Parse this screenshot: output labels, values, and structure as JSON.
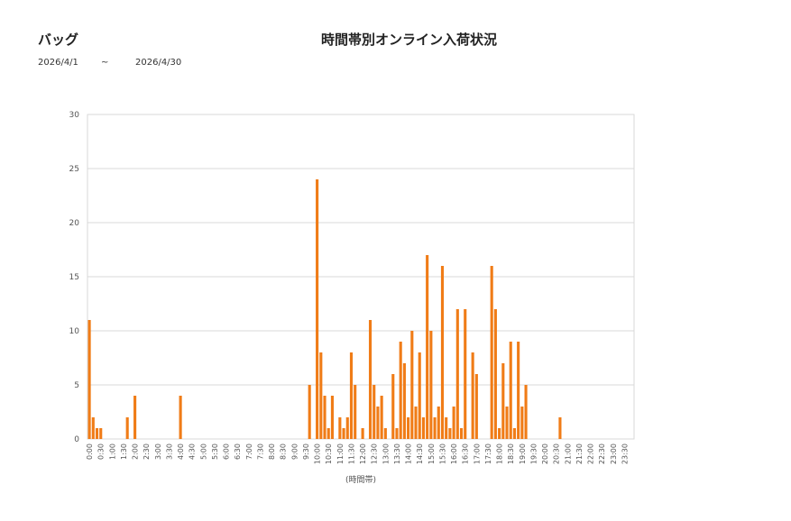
{
  "header": {
    "category": "バッグ",
    "title": "時間帯別オンライン入荷状況",
    "date_from": "2026/4/1",
    "date_sep": "~",
    "date_to": "2026/4/30"
  },
  "chart_data": {
    "type": "bar",
    "title": "時間帯別オンライン入荷状況",
    "xlabel": "(時間帯)",
    "ylabel": "",
    "ylim": [
      0,
      30
    ],
    "yticks": [
      0,
      5,
      10,
      15,
      20,
      25,
      30
    ],
    "grid": true,
    "bar_color": "#F07C17",
    "x_tick_labels": [
      "0:00",
      "0:30",
      "1:00",
      "1:30",
      "2:00",
      "2:30",
      "3:00",
      "3:30",
      "4:00",
      "4:30",
      "5:00",
      "5:30",
      "6:00",
      "6:30",
      "7:00",
      "7:30",
      "8:00",
      "8:30",
      "9:00",
      "9:30",
      "10:00",
      "10:30",
      "11:00",
      "11:30",
      "12:00",
      "12:30",
      "13:00",
      "13:30",
      "14:00",
      "14:30",
      "15:00",
      "15:30",
      "16:00",
      "16:30",
      "17:00",
      "17:30",
      "18:00",
      "18:30",
      "19:00",
      "19:30",
      "20:00",
      "20:30",
      "21:00",
      "21:30",
      "22:00",
      "22:30",
      "23:00",
      "23:30"
    ],
    "slots_per_label": 3,
    "values": [
      11,
      2,
      1,
      1,
      0,
      0,
      0,
      0,
      0,
      0,
      2,
      0,
      4,
      0,
      0,
      0,
      0,
      0,
      0,
      0,
      0,
      0,
      0,
      0,
      4,
      0,
      0,
      0,
      0,
      0,
      0,
      0,
      0,
      0,
      0,
      0,
      0,
      0,
      0,
      0,
      0,
      0,
      0,
      0,
      0,
      0,
      0,
      0,
      0,
      0,
      0,
      0,
      0,
      0,
      0,
      0,
      0,
      0,
      5,
      0,
      24,
      8,
      4,
      1,
      4,
      0,
      2,
      1,
      2,
      8,
      5,
      0,
      1,
      0,
      11,
      5,
      3,
      4,
      1,
      0,
      6,
      1,
      9,
      7,
      2,
      10,
      3,
      8,
      2,
      17,
      10,
      2,
      3,
      16,
      2,
      1,
      3,
      12,
      1,
      12,
      0,
      8,
      6,
      0,
      0,
      0,
      16,
      12,
      1,
      7,
      3,
      9,
      1,
      9,
      3,
      5,
      0,
      0,
      0,
      0,
      0,
      0,
      0,
      0,
      2,
      0,
      0,
      0,
      0,
      0,
      0,
      0,
      0,
      0,
      0,
      0,
      0,
      0,
      0,
      0,
      0,
      0,
      0,
      0
    ]
  }
}
